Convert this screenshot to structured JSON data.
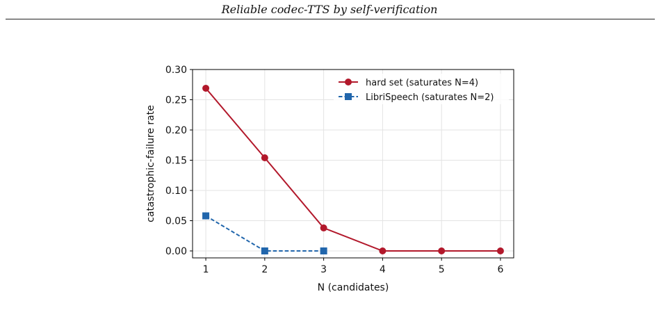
{
  "page": {
    "running_head": "Reliable codec-TTS by self-verification"
  },
  "chart_data": {
    "type": "line",
    "title": "",
    "xlabel": "N (candidates)",
    "ylabel": "catastrophic-failure rate",
    "xlim": [
      0.775,
      6.225
    ],
    "ylim": [
      -0.0115,
      0.3
    ],
    "xticks": [
      1,
      2,
      3,
      4,
      5,
      6
    ],
    "yticks": [
      0.0,
      0.05,
      0.1,
      0.15,
      0.2,
      0.25,
      0.3
    ],
    "yticks_format": 2,
    "grid": true,
    "legend_position": "top-right",
    "series": [
      {
        "name": "hard set (saturates N=4)",
        "x": [
          1,
          2,
          3,
          4,
          5,
          6
        ],
        "y": [
          0.269,
          0.154,
          0.038,
          0.0,
          0.0,
          0.0
        ],
        "color": "#b2182b",
        "marker": "circle",
        "line_style": "solid"
      },
      {
        "name": "LibriSpeech (saturates N=2)",
        "x": [
          1,
          2,
          3
        ],
        "y": [
          0.058,
          0.0,
          0.0
        ],
        "color": "#2166ac",
        "marker": "square",
        "line_style": "dashed"
      }
    ]
  }
}
